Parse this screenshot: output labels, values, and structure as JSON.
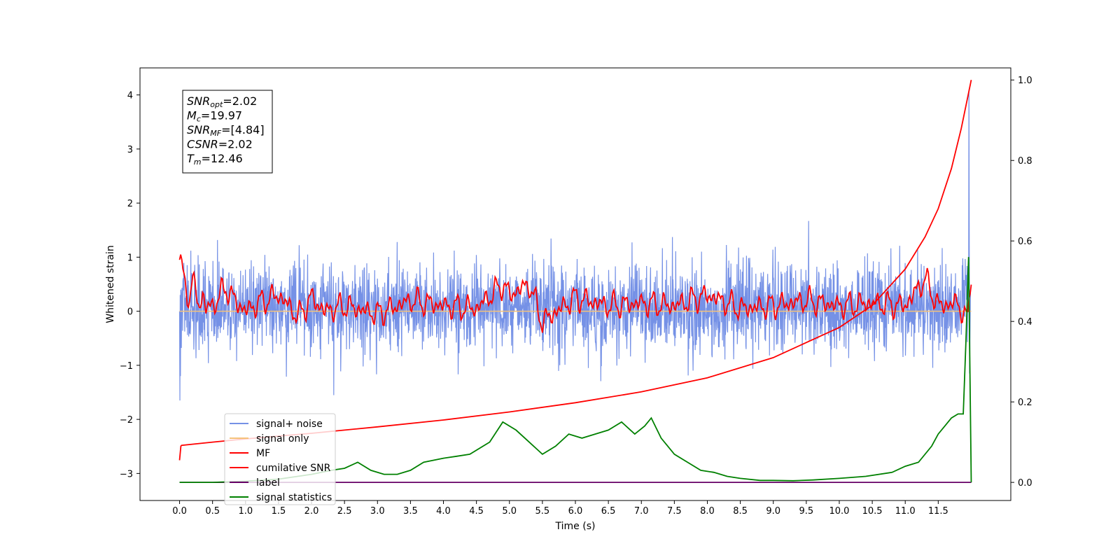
{
  "chart_data": {
    "type": "line",
    "xlabel": "Time (s)",
    "ylabel": "Whitened strain",
    "xlim": [
      -0.6,
      12.6
    ],
    "ylim": [
      -3.5,
      4.5
    ],
    "y2lim": [
      -0.045,
      1.03
    ],
    "grid": false,
    "legend_position": "lower-left",
    "x_ticks": [
      "0.0",
      "0.5",
      "1.0",
      "1.5",
      "2.0",
      "2.5",
      "3.0",
      "3.5",
      "4.0",
      "4.5",
      "5.0",
      "5.5",
      "6.0",
      "6.5",
      "7.0",
      "7.5",
      "8.0",
      "8.5",
      "9.0",
      "9.5",
      "10.0",
      "10.5",
      "11.0",
      "11.5"
    ],
    "y_ticks": [
      "−3",
      "−2",
      "−1",
      "0",
      "1",
      "2",
      "3",
      "4"
    ],
    "y2_ticks": [
      "0.0",
      "0.2",
      "0.4",
      "0.6",
      "0.8",
      "1.0"
    ],
    "annotation": {
      "lines": [
        {
          "main": "SNR",
          "sub": "opt",
          "rest": "=2.02"
        },
        {
          "main": "M",
          "sub": "c",
          "rest": "=19.97"
        },
        {
          "main": "SNR",
          "sub": "MF",
          "rest": "=[4.84]"
        },
        {
          "main": "CSNR",
          "sub": "",
          "rest": "=2.02"
        },
        {
          "main": "T",
          "sub": "m",
          "rest": "=12.46"
        }
      ]
    },
    "legend": [
      {
        "label": "signal+ noise",
        "color": "#7591e6"
      },
      {
        "label": "signal only",
        "color": "#f5c27a"
      },
      {
        "label": "MF",
        "color": "#ff0000"
      },
      {
        "label": "cumilative SNR",
        "color": "#ff0000"
      },
      {
        "label": "label",
        "color": "#660066"
      },
      {
        "label": "signal statistics",
        "color": "#008000"
      }
    ],
    "series": [
      {
        "name": "signal+ noise",
        "axis": "left",
        "color": "#7591e6",
        "description": "noisy whitened strain, amplitude about ±1, spike to 4.1 at t≈11.96"
      },
      {
        "name": "signal only",
        "axis": "left",
        "color": "#f5c27a",
        "x": [
          0,
          12
        ],
        "y": [
          0,
          0
        ]
      },
      {
        "name": "MF",
        "axis": "left",
        "color": "#ff0000",
        "x": [
          0.0,
          0.05,
          0.1,
          0.15,
          0.2,
          0.25,
          0.3,
          0.35,
          0.4,
          0.5,
          0.7,
          0.8,
          1.0,
          1.2,
          1.5,
          1.8,
          2.0,
          2.2,
          2.5,
          3.0,
          3.5,
          4.0,
          4.5,
          4.9,
          5.0,
          5.3,
          5.5,
          6.0,
          6.5,
          7.0,
          7.5,
          8.0,
          8.5,
          9.0,
          9.5,
          10.0,
          10.5,
          11.0,
          11.3,
          11.5,
          11.8,
          11.95,
          12.0
        ],
        "y": [
          0.95,
          0.65,
          0.45,
          0.25,
          0.55,
          0.35,
          0.1,
          0.3,
          0.05,
          0.1,
          0.45,
          0.25,
          0.0,
          0.15,
          0.3,
          -0.1,
          0.25,
          0.0,
          0.1,
          -0.05,
          0.2,
          0.1,
          0.05,
          0.5,
          0.3,
          0.5,
          -0.2,
          0.25,
          0.1,
          0.15,
          0.1,
          0.3,
          0.05,
          0.1,
          0.2,
          0.1,
          0.15,
          0.1,
          0.6,
          0.1,
          0.15,
          -0.2,
          0.75
        ]
      },
      {
        "name": "cumilative SNR",
        "axis": "right",
        "color": "#ff0000",
        "x": [
          0.0,
          0.02,
          0.03,
          0.5,
          1.0,
          2.0,
          3.0,
          4.0,
          5.0,
          6.0,
          7.0,
          8.0,
          9.0,
          10.0,
          10.5,
          11.0,
          11.3,
          11.5,
          11.7,
          11.85,
          12.0
        ],
        "y": [
          0.055,
          0.09,
          0.092,
          0.1,
          0.108,
          0.122,
          0.138,
          0.155,
          0.175,
          0.198,
          0.225,
          0.26,
          0.31,
          0.385,
          0.44,
          0.53,
          0.61,
          0.68,
          0.78,
          0.88,
          1.0
        ]
      },
      {
        "name": "label",
        "axis": "right",
        "color": "#660066",
        "x": [
          0,
          12
        ],
        "y": [
          0.0,
          0.0
        ]
      },
      {
        "name": "signal statistics",
        "axis": "right",
        "color": "#008000",
        "x": [
          0.0,
          0.5,
          1.0,
          1.5,
          2.0,
          2.3,
          2.5,
          2.7,
          2.9,
          3.1,
          3.3,
          3.5,
          3.7,
          4.0,
          4.2,
          4.4,
          4.7,
          4.9,
          5.1,
          5.3,
          5.5,
          5.7,
          5.9,
          6.1,
          6.3,
          6.5,
          6.7,
          6.9,
          7.05,
          7.15,
          7.3,
          7.5,
          7.7,
          7.9,
          8.1,
          8.3,
          8.5,
          8.8,
          9.0,
          9.3,
          9.6,
          10.0,
          10.4,
          10.8,
          11.0,
          11.2,
          11.4,
          11.5,
          11.6,
          11.7,
          11.8,
          11.88,
          11.92,
          11.96,
          12.0
        ],
        "y": [
          0.0,
          0.0,
          0.003,
          0.008,
          0.02,
          0.03,
          0.035,
          0.05,
          0.03,
          0.02,
          0.02,
          0.03,
          0.05,
          0.06,
          0.065,
          0.07,
          0.1,
          0.15,
          0.13,
          0.1,
          0.07,
          0.09,
          0.12,
          0.11,
          0.12,
          0.13,
          0.15,
          0.12,
          0.14,
          0.16,
          0.11,
          0.07,
          0.05,
          0.03,
          0.025,
          0.015,
          0.01,
          0.005,
          0.005,
          0.004,
          0.006,
          0.01,
          0.015,
          0.025,
          0.04,
          0.05,
          0.09,
          0.12,
          0.14,
          0.16,
          0.17,
          0.17,
          0.35,
          0.56,
          0.0
        ]
      }
    ]
  }
}
